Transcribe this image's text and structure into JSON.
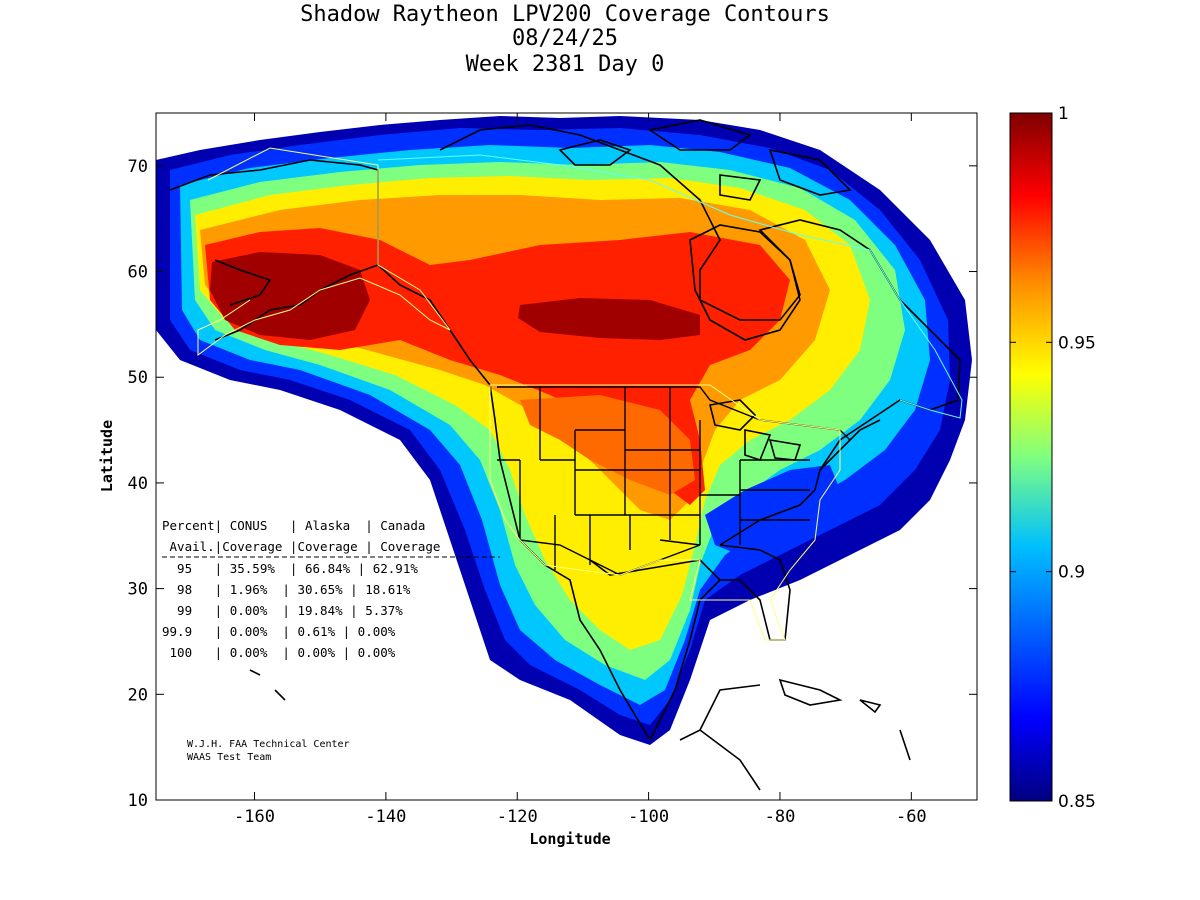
{
  "title": {
    "line1": "Shadow Raytheon LPV200 Coverage Contours",
    "line2": "08/24/25",
    "line3": "Week 2381 Day 0"
  },
  "axes": {
    "xlabel": "Longitude",
    "ylabel": "Latitude",
    "xticks": [
      "-160",
      "-140",
      "-120",
      "-100",
      "-80",
      "-60"
    ],
    "yticks": [
      "10",
      "20",
      "30",
      "40",
      "50",
      "60",
      "70"
    ],
    "xlim": [
      -175,
      -50
    ],
    "ylim": [
      10,
      75
    ]
  },
  "colorbar": {
    "ticks": [
      "0.85",
      "0.9",
      "0.95",
      "1"
    ],
    "min": 0.85,
    "max": 1,
    "colors": [
      "#00007f",
      "#0000ff",
      "#007fff",
      "#00ffff",
      "#7fff7f",
      "#ffff00",
      "#ff7f00",
      "#ff0000",
      "#7f0000"
    ]
  },
  "stats_table": {
    "header1": "Percent| CONUS   | Alaska  | Canada",
    "header2": " Avail.|Coverage |Coverage | Coverage",
    "rows": [
      "  95   | 35.59%  | 66.84% | 62.91%",
      "  98   | 1.96%  | 30.65% | 18.61%",
      "  99   | 0.00%  | 19.84% | 5.37%",
      "99.9   | 0.00%  | 0.61% | 0.00%",
      " 100   | 0.00%  | 0.00% | 0.00%"
    ]
  },
  "credit": {
    "line1": "W.J.H. FAA Technical Center",
    "line2": "WAAS Test Team"
  }
}
